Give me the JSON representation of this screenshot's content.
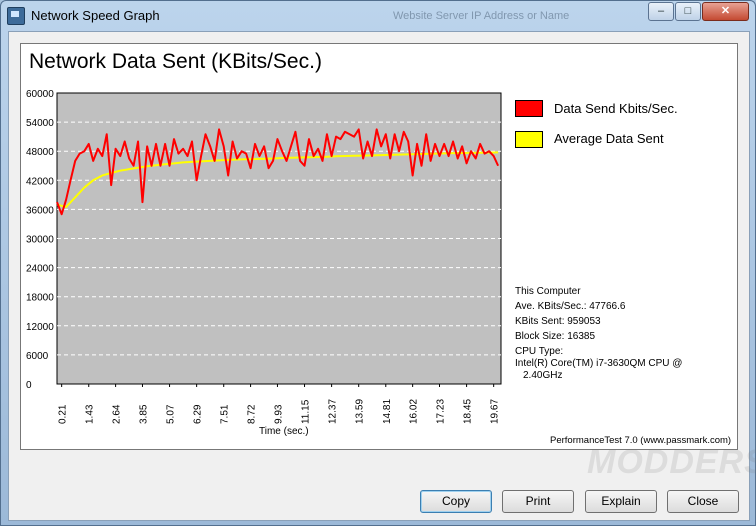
{
  "window": {
    "title": "Network Speed Graph",
    "background_text": "Website Server IP Address or Name",
    "controls": {
      "minimize": "–",
      "maximize": "□",
      "close": "✕"
    }
  },
  "graph": {
    "title": "Network Data Sent (KBits/Sec.)",
    "legend": [
      {
        "label": "Data Send Kbits/Sec.",
        "color": "#ff0000"
      },
      {
        "label": "Average Data Sent",
        "color": "#ffff00"
      }
    ],
    "info": {
      "heading": "This Computer",
      "ave": "Ave. KBits/Sec.: 47766.6",
      "sent": "KBits Sent: 959053",
      "block": "Block Size: 16385",
      "cpu_label": "CPU Type:",
      "cpu_line1": "Intel(R) Core(TM) i7-3630QM CPU @",
      "cpu_line2": "2.40GHz"
    },
    "footer": "PerformanceTest 7.0 (www.passmark.com)"
  },
  "watermark": "MODDERS inc",
  "buttons": {
    "copy": "Copy",
    "print": "Print",
    "explain": "Explain",
    "close": "Close"
  },
  "chart_data": {
    "type": "line",
    "title": "Network Data Sent (KBits/Sec.)",
    "xlabel": "Time (sec.)",
    "ylabel": "",
    "ylim": [
      0,
      60000
    ],
    "yticks": [
      "60000",
      "54000",
      "48000",
      "42000",
      "36000",
      "30000",
      "24000",
      "18000",
      "12000",
      "6000",
      "0"
    ],
    "xticks": [
      "0.21",
      "1.43",
      "2.64",
      "3.85",
      "5.07",
      "6.29",
      "7.51",
      "8.72",
      "9.93",
      "11.15",
      "12.37",
      "13.59",
      "14.81",
      "16.02",
      "17.23",
      "18.45",
      "19.67"
    ],
    "xlim": [
      0,
      20
    ],
    "grid": "horizontal dashed",
    "plot_background": "#c0c0c0",
    "series": [
      {
        "name": "Data Send Kbits/Sec.",
        "color": "#ff0000",
        "x": [
          0.0,
          0.21,
          0.41,
          0.61,
          0.82,
          1.02,
          1.23,
          1.43,
          1.63,
          1.84,
          2.04,
          2.24,
          2.44,
          2.64,
          2.85,
          3.05,
          3.25,
          3.45,
          3.65,
          3.85,
          4.06,
          4.26,
          4.46,
          4.66,
          4.87,
          5.07,
          5.27,
          5.47,
          5.68,
          5.88,
          6.08,
          6.29,
          6.49,
          6.69,
          6.9,
          7.1,
          7.3,
          7.51,
          7.71,
          7.91,
          8.11,
          8.32,
          8.52,
          8.72,
          8.92,
          9.12,
          9.33,
          9.53,
          9.73,
          9.93,
          10.14,
          10.34,
          10.54,
          10.74,
          10.95,
          11.15,
          11.35,
          11.56,
          11.76,
          11.96,
          12.16,
          12.37,
          12.57,
          12.77,
          12.97,
          13.18,
          13.38,
          13.59,
          13.79,
          13.99,
          14.19,
          14.4,
          14.6,
          14.81,
          15.01,
          15.21,
          15.41,
          15.62,
          15.82,
          16.02,
          16.22,
          16.42,
          16.63,
          16.83,
          17.03,
          17.23,
          17.44,
          17.64,
          17.84,
          18.05,
          18.25,
          18.45,
          18.65,
          18.86,
          19.06,
          19.26,
          19.46,
          19.67,
          19.87
        ],
        "values": [
          37500,
          35000,
          38000,
          42000,
          46000,
          47500,
          48000,
          49500,
          46000,
          48500,
          47000,
          51500,
          41000,
          48500,
          47000,
          50000,
          46500,
          45000,
          50000,
          37500,
          49000,
          45000,
          49500,
          45000,
          49500,
          45000,
          50500,
          47500,
          48500,
          47000,
          50000,
          42000,
          47000,
          51500,
          49000,
          46000,
          52500,
          49000,
          43000,
          50000,
          46500,
          48000,
          47500,
          44500,
          49500,
          47000,
          49000,
          44500,
          46000,
          50500,
          48000,
          46000,
          49000,
          52000,
          46000,
          45000,
          50500,
          47000,
          48500,
          46000,
          51500,
          47000,
          51000,
          50500,
          52000,
          51500,
          51000,
          52500,
          46500,
          50000,
          47000,
          52500,
          49000,
          51500,
          46500,
          51500,
          48000,
          52000,
          50000,
          43000,
          49500,
          45000,
          51500,
          46000,
          49500,
          47000,
          49500,
          47000,
          50000,
          46500,
          49000,
          45500,
          48000,
          46500,
          49500,
          47500,
          48000,
          47000,
          45000
        ]
      },
      {
        "name": "Average Data Sent",
        "color": "#ffff00",
        "x": [
          0.0,
          0.41,
          0.82,
          1.23,
          1.63,
          2.04,
          2.44,
          2.85,
          3.25,
          3.65,
          4.06,
          4.46,
          4.87,
          5.27,
          5.68,
          6.08,
          6.49,
          6.9,
          7.3,
          7.71,
          8.11,
          8.52,
          8.92,
          9.33,
          9.73,
          10.14,
          10.54,
          10.95,
          11.35,
          11.76,
          12.16,
          12.57,
          12.97,
          13.38,
          13.79,
          14.19,
          14.6,
          15.01,
          15.41,
          15.82,
          16.22,
          16.63,
          17.03,
          17.44,
          17.84,
          18.25,
          18.65,
          19.06,
          19.46,
          19.87
        ],
        "values": [
          37000,
          36500,
          38500,
          40500,
          42000,
          43000,
          43500,
          44000,
          44300,
          44600,
          44900,
          45100,
          45300,
          45500,
          45700,
          45800,
          45900,
          46000,
          46100,
          46200,
          46300,
          46350,
          46400,
          46450,
          46500,
          46600,
          46650,
          46700,
          46750,
          46800,
          46850,
          46950,
          47000,
          47050,
          47100,
          47150,
          47200,
          47250,
          47300,
          47350,
          47400,
          47450,
          47500,
          47550,
          47600,
          47620,
          47650,
          47680,
          47700,
          47750
        ]
      }
    ]
  }
}
